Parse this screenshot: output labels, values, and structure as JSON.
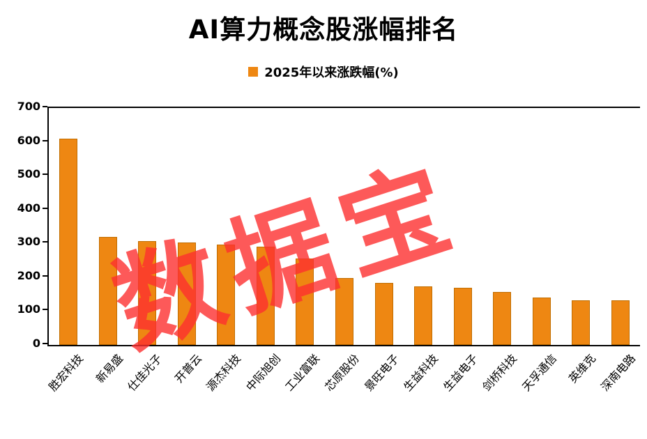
{
  "title": "AI算力概念股涨幅排名",
  "legend": {
    "label": "2025年以来涨跌幅(%)"
  },
  "watermark": "数据宝",
  "colors": {
    "bar_fill": "#EE8712",
    "bar_border": "#C06D00",
    "watermark_red": "#FC3030",
    "axis": "#000000"
  },
  "chart_data": {
    "type": "bar",
    "title": "AI算力概念股涨幅排名",
    "legend_entries": [
      "2025年以来涨跌幅(%)"
    ],
    "legend_position": "top",
    "grid": false,
    "xlabel": "",
    "ylabel": "",
    "ylim": [
      0,
      700
    ],
    "yticks": [
      0,
      100,
      200,
      300,
      400,
      500,
      600,
      700
    ],
    "categories": [
      "胜宏科技",
      "新易盛",
      "仕佳光子",
      "开普云",
      "源杰科技",
      "中际旭创",
      "工业富联",
      "芯原股份",
      "景旺电子",
      "生益科技",
      "生益电子",
      "剑桥科技",
      "天孚通信",
      "英维克",
      "深南电路"
    ],
    "values": [
      610,
      320,
      307,
      303,
      297,
      291,
      255,
      198,
      184,
      172,
      168,
      156,
      140,
      131,
      131
    ],
    "bar_color": "#EE8712",
    "bar_border_color": "#C06D00"
  }
}
